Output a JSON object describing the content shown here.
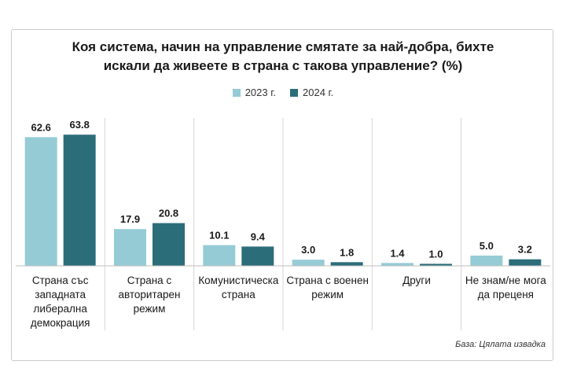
{
  "chart_data": {
    "type": "bar",
    "title_line1": "Коя система, начин на управление смятате за най-добра, бихте",
    "title_line2": "искали да живеете в страна с такова управление? (%)",
    "categories": [
      [
        "Страна със",
        "западната",
        "либерална",
        "демокрация"
      ],
      [
        "Страна с",
        "авторитарен",
        "режим"
      ],
      [
        "Комунистическа",
        "страна"
      ],
      [
        "Страна с военен",
        "режим"
      ],
      [
        "Други"
      ],
      [
        "Не знам/не мога",
        "да преценя"
      ]
    ],
    "series": [
      {
        "name": "2023 г.",
        "color": "#95cbd5",
        "values": [
          62.6,
          17.9,
          10.1,
          3.0,
          1.4,
          5.0
        ]
      },
      {
        "name": "2024 г.",
        "color": "#2c6d7a",
        "values": [
          63.8,
          20.8,
          9.4,
          1.8,
          1.0,
          3.2
        ]
      }
    ],
    "value_labels": [
      [
        "62.6",
        "17.9",
        "10.1",
        "3.0",
        "1.4",
        "5.0"
      ],
      [
        "63.8",
        "20.8",
        "9.4",
        "1.8",
        "1.0",
        "3.2"
      ]
    ],
    "ylim": [
      0,
      70
    ],
    "legend_position": "top-center",
    "grid": false,
    "source": "База: Цялата извадка"
  }
}
